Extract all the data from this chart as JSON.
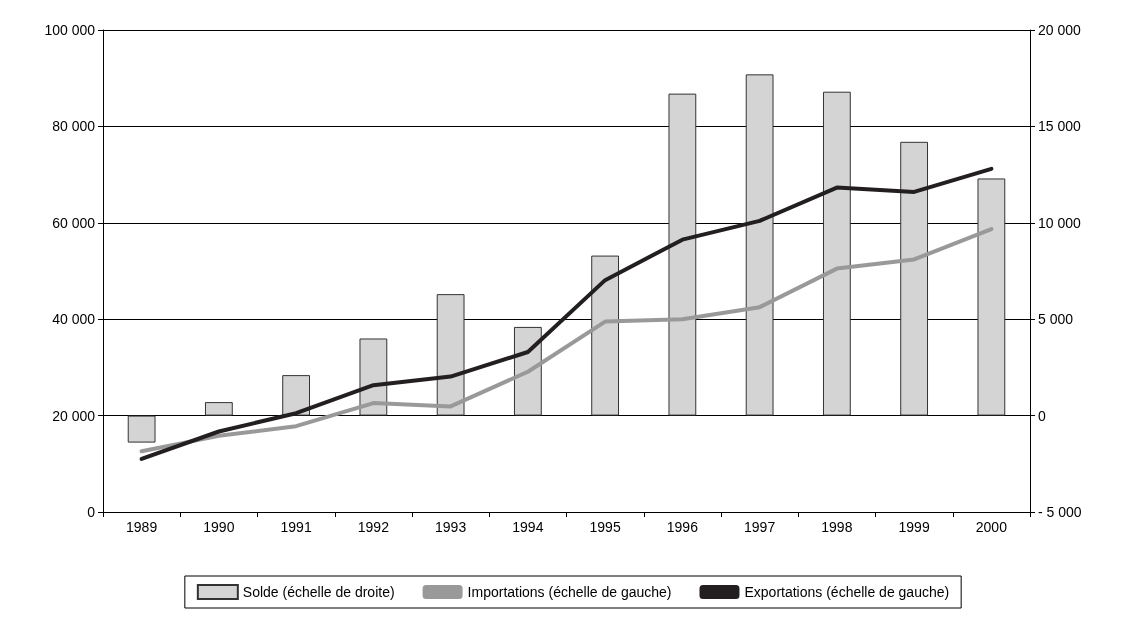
{
  "chart_data": {
    "type": "bar",
    "categories": [
      "1989",
      "1990",
      "1991",
      "1992",
      "1993",
      "1994",
      "1995",
      "1996",
      "1997",
      "1998",
      "1999",
      "2000"
    ],
    "series": [
      {
        "name": "Solde (échelle de droite)",
        "axis": "y2",
        "color": "#d4d4d4",
        "values": [
          -1400,
          700,
          2100,
          4000,
          6300,
          4600,
          8300,
          16700,
          17700,
          16800,
          14200,
          12300
        ]
      },
      {
        "name": "Importations (échelle de gauche)",
        "type": "line",
        "color": "#999999",
        "values": [
          12600,
          15800,
          17800,
          22600,
          21900,
          29100,
          39500,
          40000,
          42500,
          50500,
          52400,
          58700
        ]
      },
      {
        "name": "Exportations (échelle de gauche)",
        "type": "line",
        "color": "#231f20",
        "values": [
          11000,
          16700,
          20500,
          26300,
          28100,
          33200,
          48100,
          56500,
          60400,
          67300,
          66400,
          71200
        ]
      }
    ],
    "ylim": [
      0,
      100000
    ],
    "yticks": [
      0,
      {
        "value": 20000,
        "label": "20 000"
      },
      {
        "value": 40000,
        "label": "40 000"
      },
      {
        "value": 60000,
        "label": "60 000"
      },
      {
        "value": 80000,
        "label": "80 000"
      },
      {
        "value": 100000,
        "label": "100 000"
      }
    ],
    "y2lim": [
      -5000,
      20000
    ],
    "y2ticks": [
      {
        "value": -5000,
        "label": "- 5 000"
      },
      0,
      {
        "value": 5000,
        "label": "5 000"
      },
      {
        "value": 10000,
        "label": "10 000"
      },
      {
        "value": 15000,
        "label": "15 000"
      },
      {
        "value": 20000,
        "label": "20 000"
      }
    ],
    "grid": "y",
    "legend": "bottom",
    "marker": "none",
    "line_style": "solid"
  }
}
